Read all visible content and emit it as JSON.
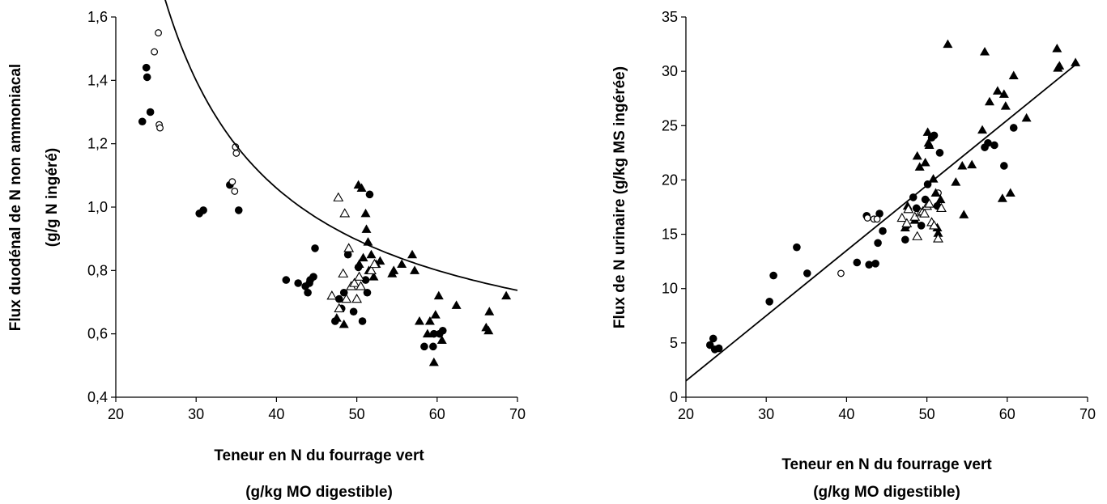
{
  "chart_data": [
    {
      "type": "scatter",
      "xlabel": [
        "Teneur en N du fourrage vert",
        "(g/kg MO digestible)"
      ],
      "ylabel": [
        "Flux duodénal de N non ammoniacal",
        "(g/g N ingéré)"
      ],
      "xlim": [
        20,
        70
      ],
      "ylim": [
        0.4,
        1.6
      ],
      "xticks": [
        20,
        30,
        40,
        50,
        60,
        70
      ],
      "yticks": [
        0.4,
        0.6,
        0.8,
        1.0,
        1.2,
        1.4,
        1.6
      ],
      "xtick_labels": [
        "20",
        "30",
        "40",
        "50",
        "60",
        "70"
      ],
      "ytick_labels": [
        "0,4",
        "0,6",
        "0,8",
        "1,0",
        "1,2",
        "1,4",
        "1,6"
      ],
      "series": [
        {
          "marker": "filled-circle",
          "points": [
            [
              23.3,
              1.27
            ],
            [
              23.8,
              1.44
            ],
            [
              23.9,
              1.41
            ],
            [
              24.3,
              1.3
            ],
            [
              30.4,
              0.98
            ],
            [
              30.9,
              0.99
            ],
            [
              34.2,
              1.07
            ],
            [
              35.3,
              0.99
            ],
            [
              41.2,
              0.77
            ],
            [
              42.7,
              0.76
            ],
            [
              43.6,
              0.75
            ],
            [
              43.9,
              0.73
            ],
            [
              44.1,
              0.76
            ],
            [
              44.2,
              0.77
            ],
            [
              44.6,
              0.78
            ],
            [
              44.8,
              0.87
            ],
            [
              47.3,
              0.64
            ],
            [
              47.8,
              0.71
            ],
            [
              48.1,
              0.68
            ],
            [
              48.4,
              0.73
            ],
            [
              48.9,
              0.85
            ],
            [
              49.6,
              0.67
            ],
            [
              50.2,
              0.81
            ],
            [
              50.7,
              0.64
            ],
            [
              51.1,
              0.77
            ],
            [
              51.3,
              0.73
            ],
            [
              51.6,
              1.04
            ],
            [
              58.4,
              0.56
            ],
            [
              59.5,
              0.56
            ],
            [
              59.6,
              0.6
            ],
            [
              60.3,
              0.6
            ],
            [
              60.7,
              0.61
            ]
          ]
        },
        {
          "marker": "open-circle",
          "points": [
            [
              24.8,
              1.49
            ],
            [
              25.3,
              1.55
            ],
            [
              25.4,
              1.26
            ],
            [
              25.5,
              1.25
            ],
            [
              34.5,
              1.08
            ],
            [
              34.8,
              1.05
            ],
            [
              34.9,
              1.19
            ],
            [
              35.0,
              1.17
            ]
          ]
        },
        {
          "marker": "filled-triangle",
          "points": [
            [
              47.5,
              0.65
            ],
            [
              48.4,
              0.63
            ],
            [
              50.2,
              1.07
            ],
            [
              50.3,
              0.82
            ],
            [
              50.6,
              1.06
            ],
            [
              50.8,
              0.84
            ],
            [
              51.1,
              0.98
            ],
            [
              51.2,
              0.93
            ],
            [
              51.4,
              0.89
            ],
            [
              51.5,
              0.8
            ],
            [
              51.8,
              0.85
            ],
            [
              52.1,
              0.78
            ],
            [
              52.4,
              0.82
            ],
            [
              52.9,
              0.83
            ],
            [
              54.4,
              0.79
            ],
            [
              54.6,
              0.8
            ],
            [
              55.6,
              0.82
            ],
            [
              56.9,
              0.85
            ],
            [
              57.2,
              0.8
            ],
            [
              57.8,
              0.64
            ],
            [
              58.8,
              0.6
            ],
            [
              59.1,
              0.64
            ],
            [
              59.6,
              0.51
            ],
            [
              59.8,
              0.66
            ],
            [
              60.2,
              0.72
            ],
            [
              60.6,
              0.58
            ],
            [
              62.4,
              0.69
            ],
            [
              66.1,
              0.62
            ],
            [
              66.4,
              0.61
            ],
            [
              66.5,
              0.67
            ],
            [
              68.6,
              0.72
            ]
          ]
        },
        {
          "marker": "open-triangle",
          "points": [
            [
              46.9,
              0.72
            ],
            [
              47.7,
              1.03
            ],
            [
              47.8,
              0.68
            ],
            [
              48.3,
              0.79
            ],
            [
              48.5,
              0.98
            ],
            [
              48.7,
              0.71
            ],
            [
              49.0,
              0.87
            ],
            [
              49.3,
              0.75
            ],
            [
              49.7,
              0.76
            ],
            [
              50.0,
              0.71
            ],
            [
              50.3,
              0.78
            ],
            [
              50.5,
              0.75
            ],
            [
              51.8,
              0.8
            ],
            [
              52.2,
              0.82
            ]
          ]
        }
      ],
      "curve": {
        "type": "hyperbola",
        "a": 0.43,
        "b": 17.99,
        "x0": 11.45,
        "x_range": [
          22.6,
          70
        ]
      }
    },
    {
      "type": "scatter",
      "xlabel": [
        "Teneur en N du fourrage vert",
        "(g/kg MO digestible)"
      ],
      "ylabel": [
        "Flux de N urinaire (g/kg MS ingérée)"
      ],
      "xlim": [
        20,
        70
      ],
      "ylim": [
        0,
        35
      ],
      "xticks": [
        20,
        30,
        40,
        50,
        60,
        70
      ],
      "yticks": [
        0,
        5,
        10,
        15,
        20,
        25,
        30,
        35
      ],
      "xtick_labels": [
        "20",
        "30",
        "40",
        "50",
        "60",
        "70"
      ],
      "ytick_labels": [
        "0",
        "5",
        "10",
        "15",
        "20",
        "25",
        "30",
        "35"
      ],
      "series": [
        {
          "marker": "filled-circle",
          "points": [
            [
              23.0,
              4.8
            ],
            [
              23.4,
              5.4
            ],
            [
              23.6,
              4.4
            ],
            [
              24.1,
              4.5
            ],
            [
              30.4,
              8.8
            ],
            [
              30.9,
              11.2
            ],
            [
              33.8,
              13.8
            ],
            [
              35.1,
              11.4
            ],
            [
              41.3,
              12.4
            ],
            [
              42.5,
              16.7
            ],
            [
              42.8,
              12.2
            ],
            [
              43.6,
              12.3
            ],
            [
              43.9,
              14.2
            ],
            [
              44.1,
              16.9
            ],
            [
              44.5,
              15.3
            ],
            [
              47.3,
              14.5
            ],
            [
              47.5,
              15.8
            ],
            [
              48.3,
              18.4
            ],
            [
              48.7,
              17.4
            ],
            [
              49.3,
              15.8
            ],
            [
              49.8,
              18.2
            ],
            [
              50.1,
              19.6
            ],
            [
              50.6,
              23.9
            ],
            [
              50.9,
              24.1
            ],
            [
              51.3,
              17.6
            ],
            [
              51.6,
              22.5
            ],
            [
              57.2,
              23.0
            ],
            [
              57.6,
              23.4
            ],
            [
              58.4,
              23.2
            ],
            [
              59.6,
              21.3
            ],
            [
              60.8,
              24.8
            ]
          ]
        },
        {
          "marker": "open-circle",
          "points": [
            [
              39.3,
              11.4
            ],
            [
              42.6,
              16.5
            ],
            [
              43.4,
              16.4
            ],
            [
              43.8,
              16.4
            ],
            [
              51.4,
              18.8
            ]
          ]
        },
        {
          "marker": "filled-triangle",
          "points": [
            [
              47.3,
              15.6
            ],
            [
              47.6,
              17.6
            ],
            [
              48.5,
              16.3
            ],
            [
              48.8,
              22.2
            ],
            [
              49.1,
              21.2
            ],
            [
              49.8,
              21.6
            ],
            [
              50.1,
              24.4
            ],
            [
              50.2,
              23.4
            ],
            [
              50.3,
              23.2
            ],
            [
              50.8,
              20.1
            ],
            [
              51.1,
              18.8
            ],
            [
              51.3,
              15.6
            ],
            [
              51.4,
              15.1
            ],
            [
              51.7,
              18.2
            ],
            [
              52.6,
              32.5
            ],
            [
              53.6,
              19.8
            ],
            [
              54.4,
              21.3
            ],
            [
              54.6,
              16.8
            ],
            [
              55.6,
              21.4
            ],
            [
              56.9,
              24.6
            ],
            [
              57.2,
              31.8
            ],
            [
              57.8,
              27.2
            ],
            [
              58.8,
              28.2
            ],
            [
              59.4,
              18.3
            ],
            [
              59.6,
              27.9
            ],
            [
              59.8,
              26.8
            ],
            [
              60.4,
              18.8
            ],
            [
              60.8,
              29.6
            ],
            [
              62.4,
              25.7
            ],
            [
              66.2,
              32.1
            ],
            [
              66.3,
              30.3
            ],
            [
              66.5,
              30.5
            ],
            [
              68.5,
              30.8
            ]
          ]
        },
        {
          "marker": "open-triangle",
          "points": [
            [
              46.9,
              16.5
            ],
            [
              47.5,
              16.0
            ],
            [
              47.7,
              17.3
            ],
            [
              48.5,
              16.6
            ],
            [
              48.8,
              14.8
            ],
            [
              49.2,
              17.0
            ],
            [
              49.5,
              17.1
            ],
            [
              49.7,
              16.9
            ],
            [
              50.0,
              17.6
            ],
            [
              50.3,
              17.8
            ],
            [
              50.6,
              16.1
            ],
            [
              50.9,
              15.8
            ],
            [
              51.4,
              14.6
            ],
            [
              51.8,
              17.4
            ]
          ]
        }
      ],
      "trendline": {
        "type": "linear",
        "slope": 0.6,
        "intercept": -10.5,
        "x_range": [
          20,
          68.5
        ]
      }
    }
  ]
}
